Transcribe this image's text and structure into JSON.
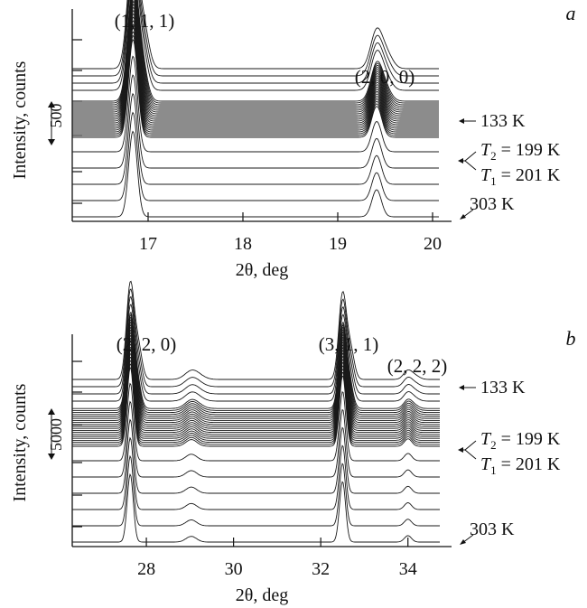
{
  "chart_data": [
    {
      "panel": "a",
      "type": "line",
      "xlabel": "2θ, deg",
      "ylabel": "Intensity, counts",
      "xlim": [
        16.2,
        20.2
      ],
      "x_ticks": [
        17,
        18,
        19,
        20
      ],
      "ylim": [
        0,
        2100
      ],
      "y_scale_bar": {
        "label": "500",
        "value": 500
      },
      "peaks": [
        {
          "label": "(1, 1, 1)",
          "center": 16.84,
          "height": 1200,
          "width": 0.045
        },
        {
          "label": "(2, 0, 0)",
          "center": 19.41,
          "height": 380,
          "width": 0.05
        }
      ],
      "high_temp_peak_shift": [
        0,
        0.11
      ],
      "traces": 32,
      "trace_spacing": 60,
      "temperature_labels": [
        {
          "text": "133 K"
        },
        {
          "sym": "T",
          "sub": "2",
          "rest": " = 199 K"
        },
        {
          "sym": "T",
          "sub": "1",
          "rest": " = 201 K"
        },
        {
          "text": "303 K"
        }
      ]
    },
    {
      "panel": "b",
      "type": "line",
      "xlabel": "2θ, deg",
      "ylabel": "Intensity, counts",
      "xlim": [
        26.3,
        35
      ],
      "x_ticks": [
        28,
        30,
        32,
        34
      ],
      "ylim": [
        0,
        21000
      ],
      "y_scale_bar": {
        "label": "5000",
        "value": 5000
      },
      "peaks": [
        {
          "label": "(2, 2, 0)",
          "center": 27.63,
          "height": 9500,
          "width": 0.07
        },
        {
          "label": "",
          "center": 29.03,
          "height": 800,
          "width": 0.12
        },
        {
          "label": "(3, 1, 1)",
          "center": 32.5,
          "height": 8500,
          "width": 0.07
        },
        {
          "label": "(2, 2, 2)",
          "center": 34.0,
          "height": 900,
          "width": 0.08
        }
      ],
      "high_temp_peak_shift": [
        0,
        0.18
      ],
      "traces": 32,
      "trace_spacing": 580,
      "temperature_labels": [
        {
          "text": "133 K"
        },
        {
          "sym": "T",
          "sub": "2",
          "rest": " = 199 K"
        },
        {
          "sym": "T",
          "sub": "1",
          "rest": " = 201 K"
        },
        {
          "text": "303 K"
        }
      ]
    }
  ]
}
